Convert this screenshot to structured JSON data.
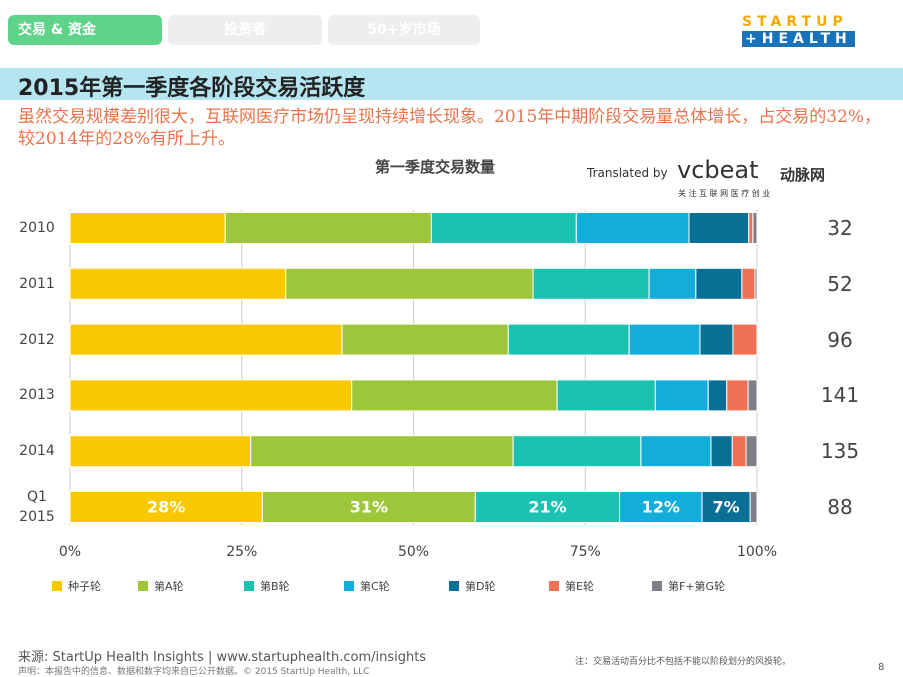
{
  "tabs": [
    "交易 & 资金",
    "投资者",
    "50+岁市场"
  ],
  "logo": {
    "line1": "STARTUP",
    "line2": "+HEALTH"
  },
  "header": {
    "title": "2015年第一季度各阶段交易活跃度",
    "subtitle": "虽然交易规模差别很大，互联网医疗市场仍呈现持续增长现象。2015年中期阶段交易量总体增长，占交易的32%，较2014年的28%有所上升。"
  },
  "translator": {
    "prefix": "Translated by",
    "brand": "vcbeat",
    "brand_cn": "动脉网",
    "slogan": "关 注 互 联 网 医 疗 创 业"
  },
  "chart_data": {
    "type": "stacked_bar_horizontal",
    "title": "第一季度交易数量",
    "categories": [
      "2010",
      "2011",
      "2012",
      "2013",
      "2014",
      "Q1 2015"
    ],
    "series": [
      {
        "name": "种子轮",
        "color": "#f9c800",
        "values": [
          22.6,
          31.4,
          39.6,
          41,
          26.3,
          28
        ],
        "value_labels": [
          null,
          null,
          null,
          null,
          null,
          "28%"
        ]
      },
      {
        "name": "第A轮",
        "color": "#9dc63b",
        "values": [
          30,
          36,
          24.2,
          29.9,
          38.2,
          31
        ],
        "value_labels": [
          null,
          null,
          null,
          null,
          null,
          "31%"
        ]
      },
      {
        "name": "第B轮",
        "color": "#1bc1b1",
        "values": [
          21.1,
          16.9,
          17.6,
          14.3,
          18.6,
          21
        ],
        "value_labels": [
          null,
          null,
          null,
          null,
          null,
          "21%"
        ]
      },
      {
        "name": "第C轮",
        "color": "#12aed9",
        "values": [
          16.4,
          6.8,
          10.3,
          7.7,
          10.2,
          12
        ],
        "value_labels": [
          null,
          null,
          null,
          null,
          null,
          "12%"
        ]
      },
      {
        "name": "第D轮",
        "color": "#0a6f94",
        "values": [
          8.7,
          6.7,
          4.8,
          2.7,
          3.1,
          7
        ],
        "value_labels": [
          null,
          null,
          null,
          null,
          null,
          "7%"
        ]
      },
      {
        "name": "第E轮",
        "color": "#f07055",
        "values": [
          0.6,
          1.9,
          3.5,
          3.1,
          2,
          0
        ]
      },
      {
        "name": "第F+第G轮",
        "color": "#7f7f88",
        "values": [
          0.6,
          0.3,
          0,
          1.3,
          1.6,
          1
        ]
      }
    ],
    "deal_counts": [
      32,
      52,
      96,
      141,
      135,
      88
    ],
    "xlim": [
      0,
      100
    ],
    "xticks": [
      {
        "value": 0,
        "label": "0%"
      },
      {
        "value": 25,
        "label": "25%"
      },
      {
        "value": 50,
        "label": "50%"
      },
      {
        "value": 75,
        "label": "75%"
      },
      {
        "value": 100,
        "label": "100%"
      }
    ],
    "grid": true
  },
  "footer": {
    "source": "来源: StartUp Health Insights | www.startuphealth.com/insights",
    "disclaimer": "声明：本报告中的信息、数据和数字均来自已公开数据。© 2015 StartUp Health, LLC",
    "note": "注：交易活动百分比不包括不能以阶段划分的风投轮。",
    "page": "8"
  }
}
